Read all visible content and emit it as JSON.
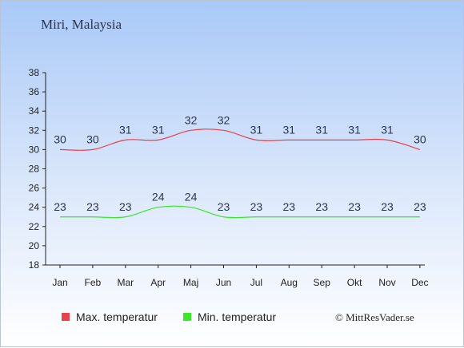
{
  "chart_data": {
    "type": "line",
    "title": "Miri, Malaysia",
    "categories": [
      "Jan",
      "Feb",
      "Mar",
      "Apr",
      "Maj",
      "Jun",
      "Jul",
      "Aug",
      "Sep",
      "Okt",
      "Nov",
      "Dec"
    ],
    "ylim": [
      18,
      38
    ],
    "yticks": [
      18,
      20,
      22,
      24,
      26,
      28,
      30,
      32,
      34,
      36,
      38
    ],
    "grid": false,
    "legend_placement": "bottom",
    "series": [
      {
        "name": "Max. temperatur",
        "color": "#e8414a",
        "values": [
          30,
          30,
          31,
          31,
          32,
          32,
          31,
          31,
          31,
          31,
          31,
          30
        ]
      },
      {
        "name": "Min. temperatur",
        "color": "#3ce62a",
        "values": [
          23,
          23,
          23,
          24,
          24,
          23,
          23,
          23,
          23,
          23,
          23,
          23
        ]
      }
    ]
  },
  "credit": "© MittResVader.se"
}
